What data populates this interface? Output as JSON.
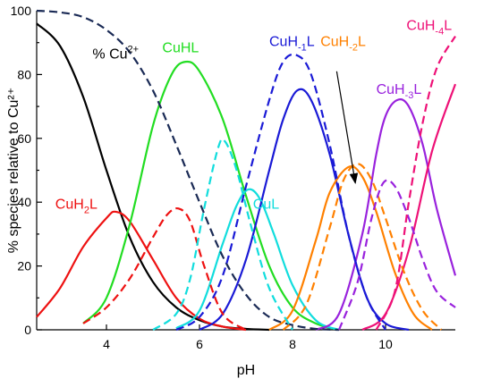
{
  "chart_data": {
    "type": "line",
    "xlabel": "pH",
    "ylabel": "% species relative to Cu²⁺",
    "xlim": [
      2.5,
      11.5
    ],
    "ylim": [
      0,
      100
    ],
    "xticks": [
      4,
      6,
      8,
      10
    ],
    "yticks": [
      0,
      20,
      40,
      60,
      80,
      100
    ],
    "grid": false,
    "series": [
      {
        "name": "% Cu2+",
        "label_parts": [
          [
            "% Cu",
            ""
          ],
          [
            "2+",
            "sup"
          ]
        ],
        "color": "#000000",
        "style": "solid",
        "x": [
          2.5,
          3.0,
          3.5,
          4.0,
          4.5,
          5.0,
          5.5,
          6.0,
          6.5,
          7.0,
          7.5
        ],
        "y": [
          96,
          89,
          73,
          50,
          29,
          15,
          7,
          3,
          1,
          0.3,
          0
        ]
      },
      {
        "name": "CuH2L",
        "label_parts": [
          [
            "CuH",
            ""
          ],
          [
            "2",
            "sub"
          ],
          [
            "L",
            ""
          ]
        ],
        "color": "#ee1111",
        "style": "solid",
        "x": [
          2.5,
          3.0,
          3.5,
          4.0,
          4.2,
          4.5,
          5.0,
          5.5,
          6.0,
          6.5,
          7.0
        ],
        "y": [
          4,
          13,
          26,
          35,
          37,
          34,
          22,
          10,
          3.5,
          1,
          0
        ]
      },
      {
        "name": "CuHL",
        "color": "#22dd22",
        "style": "solid",
        "x": [
          3.5,
          4.0,
          4.5,
          5.0,
          5.4,
          5.7,
          6.0,
          6.5,
          7.0,
          7.5,
          8.0,
          8.5,
          9.0
        ],
        "y": [
          2,
          10,
          33,
          64,
          80,
          84,
          81,
          66,
          42,
          20,
          7,
          2,
          0
        ]
      },
      {
        "name": "CuL",
        "color": "#11dddd",
        "style": "solid",
        "x": [
          5.5,
          6.0,
          6.5,
          6.8,
          7.05,
          7.3,
          7.6,
          8.0,
          8.5,
          9.0
        ],
        "y": [
          0.5,
          6,
          27,
          39,
          44,
          41,
          30,
          14,
          3,
          0
        ]
      },
      {
        "name": "CuH-1L",
        "label_parts": [
          [
            "CuH",
            ""
          ],
          [
            "-1",
            "sub"
          ],
          [
            "L",
            ""
          ]
        ],
        "color": "#1a1ad6",
        "style": "solid",
        "x": [
          6.0,
          6.5,
          7.0,
          7.5,
          7.8,
          8.1,
          8.4,
          8.8,
          9.2,
          9.6,
          10.0,
          10.5
        ],
        "y": [
          0,
          5,
          22,
          50,
          66,
          75,
          72,
          55,
          30,
          10,
          2,
          0
        ]
      },
      {
        "name": "CuH-2L",
        "label_parts": [
          [
            "CuH",
            ""
          ],
          [
            "-2",
            "sub"
          ],
          [
            "L",
            ""
          ]
        ],
        "color": "#ff8000",
        "style": "solid",
        "x": [
          7.5,
          8.0,
          8.5,
          8.8,
          9.2,
          9.5,
          9.8,
          10.2,
          10.6,
          11.0
        ],
        "y": [
          0,
          6,
          28,
          43,
          51,
          48,
          37,
          18,
          5,
          0
        ]
      },
      {
        "name": "CuH-3L",
        "label_parts": [
          [
            "CuH",
            ""
          ],
          [
            "-3",
            "sub"
          ],
          [
            "L",
            ""
          ]
        ],
        "color": "#9922dd",
        "style": "solid",
        "x": [
          8.5,
          9.0,
          9.5,
          9.8,
          10.0,
          10.25,
          10.5,
          10.8,
          11.1,
          11.5
        ],
        "y": [
          0,
          5,
          30,
          55,
          67,
          72,
          70,
          58,
          38,
          17
        ]
      },
      {
        "name": "CuH-4L",
        "label_parts": [
          [
            "CuH",
            ""
          ],
          [
            "-4",
            "sub"
          ],
          [
            "L",
            ""
          ]
        ],
        "color": "#ee1177",
        "style": "solid",
        "x": [
          9.5,
          10.0,
          10.5,
          11.0,
          11.5
        ],
        "y": [
          0,
          5,
          25,
          56,
          77
        ]
      },
      {
        "name": "Cu2+ (dashed)",
        "color": "#1a2a55",
        "style": "dash",
        "x": [
          2.5,
          3.0,
          3.5,
          4.0,
          4.5,
          5.0,
          5.5,
          6.0,
          6.5,
          7.0,
          7.5,
          8.0,
          8.5,
          9.0
        ],
        "y": [
          100,
          99.5,
          98,
          94,
          87,
          75,
          58,
          40,
          23,
          11,
          4,
          1.5,
          0.3,
          0
        ]
      },
      {
        "name": "CuH2L (dashed)",
        "color": "#ee1111",
        "style": "dash",
        "x": [
          3.5,
          4.0,
          4.5,
          5.0,
          5.3,
          5.55,
          5.8,
          6.1,
          6.5,
          7.0
        ],
        "y": [
          2,
          7,
          16,
          29,
          36,
          38,
          34,
          20,
          5,
          0
        ]
      },
      {
        "name": "CuL (dashed)",
        "color": "#11dddd",
        "style": "dash",
        "x": [
          5.0,
          5.5,
          5.8,
          6.1,
          6.4,
          6.55,
          6.8,
          7.1,
          7.5,
          8.0
        ],
        "y": [
          0,
          5,
          16,
          38,
          57,
          59,
          50,
          33,
          13,
          0
        ]
      },
      {
        "name": "CuH-1L (dashed)",
        "color": "#1a1ad6",
        "style": "dash",
        "x": [
          5.5,
          6.0,
          6.5,
          7.0,
          7.5,
          7.8,
          8.1,
          8.4,
          8.8,
          9.2,
          9.6,
          10.0
        ],
        "y": [
          0,
          4,
          17,
          45,
          72,
          84,
          86,
          80,
          58,
          30,
          10,
          0
        ]
      },
      {
        "name": "CuH-2L (dashed)",
        "color": "#ff8000",
        "style": "dash",
        "x": [
          7.8,
          8.3,
          8.8,
          9.1,
          9.4,
          9.7,
          10.0,
          10.4,
          10.8,
          11.2
        ],
        "y": [
          0,
          8,
          32,
          47,
          52,
          47,
          35,
          18,
          6,
          0
        ]
      },
      {
        "name": "CuH-3L (dashed)",
        "color": "#9922dd",
        "style": "dash",
        "x": [
          9.0,
          9.4,
          9.7,
          9.95,
          10.2,
          10.5,
          10.8,
          11.1,
          11.5
        ],
        "y": [
          0,
          15,
          35,
          46,
          45,
          35,
          22,
          12,
          7
        ]
      },
      {
        "name": "CuH-4L (dashed)",
        "color": "#ee1177",
        "style": "dash",
        "x": [
          9.8,
          10.2,
          10.5,
          10.8,
          11.1,
          11.5
        ],
        "y": [
          0,
          12,
          40,
          65,
          82,
          92
        ]
      }
    ],
    "labels": [
      {
        "series": 0,
        "x": 3.7,
        "y": 85
      },
      {
        "series": 1,
        "x": 2.9,
        "y": 38
      },
      {
        "series": 2,
        "x": 5.2,
        "y": 87
      },
      {
        "series": 3,
        "x": 7.15,
        "y": 38
      },
      {
        "series": 4,
        "x": 7.5,
        "y": 89
      },
      {
        "series": 5,
        "x": 8.6,
        "y": 89
      },
      {
        "series": 6,
        "x": 9.8,
        "y": 74
      },
      {
        "series": 7,
        "x": 10.45,
        "y": 94
      }
    ],
    "annotations": [
      {
        "type": "arrow",
        "from": [
          8.95,
          81
        ],
        "to": [
          9.35,
          46
        ]
      }
    ]
  }
}
